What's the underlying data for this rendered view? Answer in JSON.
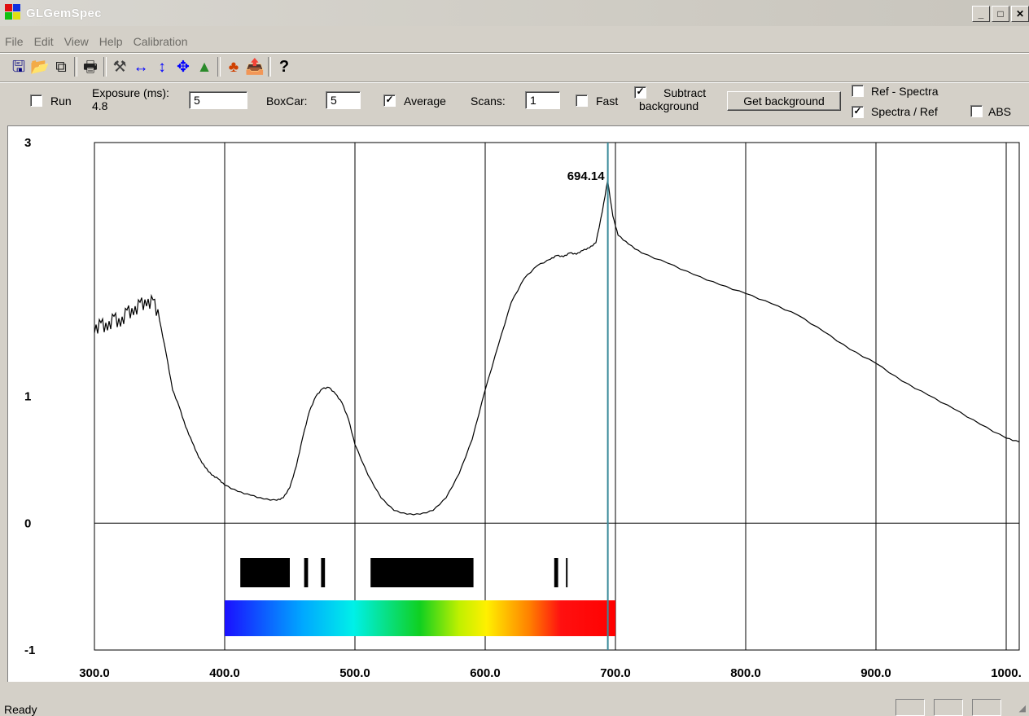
{
  "window": {
    "title": "GLGemSpec"
  },
  "menu": [
    "File",
    "Edit",
    "View",
    "Help",
    "Calibration"
  ],
  "toolbar": {
    "icons": [
      {
        "name": "save-icon",
        "glyph": "🖫",
        "color": "#000080"
      },
      {
        "name": "open-folder-icon",
        "glyph": "📂",
        "color": "#c8a000"
      },
      {
        "name": "copy-icon",
        "glyph": "⧉",
        "color": "#202020"
      },
      {
        "name": "print-icon",
        "glyph": "🖶",
        "color": "#202020"
      },
      {
        "name": "calibrate-tool-icon",
        "glyph": "⚒",
        "color": "#404040"
      },
      {
        "name": "horizontal-zoom-icon",
        "glyph": "↔",
        "color": "#0000ff"
      },
      {
        "name": "vertical-zoom-icon",
        "glyph": "↕",
        "color": "#0000ff"
      },
      {
        "name": "move-icon",
        "glyph": "✥",
        "color": "#0000ff"
      },
      {
        "name": "spectrum-peaks-icon",
        "glyph": "▲",
        "color": "#2a8a2a"
      },
      {
        "name": "color-wheel-icon",
        "glyph": "♣",
        "color": "#d04000"
      },
      {
        "name": "export-folder-icon",
        "glyph": "📤",
        "color": "#c8a000"
      },
      {
        "name": "help-icon",
        "glyph": "?",
        "color": "#000000"
      }
    ]
  },
  "controls": {
    "run_label": "Run",
    "exposure_label": "Exposure (ms):",
    "exposure_actual": "4.8",
    "exposure_value": "5",
    "boxcar_label": "BoxCar:",
    "boxcar_value": "5",
    "average_label": "Average",
    "average_checked": true,
    "scans_label": "Scans:",
    "scans_value": "1",
    "fast_label": "Fast",
    "subtract_label_1": "Subtract",
    "subtract_label_2": "background",
    "subtract_checked": true,
    "get_background_label": "Get background",
    "ref_spectra_label": "Ref - Spectra",
    "spectra_ref_label": "Spectra / Ref",
    "spectra_ref_checked": true,
    "abs_label": "ABS"
  },
  "status": {
    "text": "Ready"
  },
  "chart_data": {
    "type": "line",
    "xlim": [
      300,
      1010
    ],
    "ylim": [
      -1,
      3
    ],
    "x_ticks": [
      300,
      400,
      500,
      600,
      700,
      800,
      900,
      1000
    ],
    "x_tick_labels": [
      "300.0",
      "400.0",
      "500.0",
      "600.0",
      "700.0",
      "800.0",
      "900.0",
      "1000."
    ],
    "y_tick_labels": [
      {
        "value": 3,
        "label": "3"
      },
      {
        "value": 1,
        "label": "1"
      },
      {
        "value": 0,
        "label": "0"
      },
      {
        "value": -1,
        "label": "-1"
      }
    ],
    "marker": {
      "x": 694.14,
      "label": "694.14"
    },
    "series": [
      {
        "points": [
          [
            300,
            1.5
          ],
          [
            305,
            1.58
          ],
          [
            310,
            1.52
          ],
          [
            315,
            1.63
          ],
          [
            320,
            1.55
          ],
          [
            325,
            1.68
          ],
          [
            330,
            1.64
          ],
          [
            335,
            1.74
          ],
          [
            340,
            1.71
          ],
          [
            345,
            1.76
          ],
          [
            350,
            1.6
          ],
          [
            355,
            1.34
          ],
          [
            360,
            1.05
          ],
          [
            365,
            0.92
          ],
          [
            370,
            0.76
          ],
          [
            375,
            0.64
          ],
          [
            380,
            0.52
          ],
          [
            385,
            0.44
          ],
          [
            390,
            0.38
          ],
          [
            395,
            0.35
          ],
          [
            400,
            0.3
          ],
          [
            410,
            0.25
          ],
          [
            420,
            0.22
          ],
          [
            430,
            0.19
          ],
          [
            440,
            0.18
          ],
          [
            445,
            0.2
          ],
          [
            450,
            0.28
          ],
          [
            455,
            0.45
          ],
          [
            460,
            0.68
          ],
          [
            465,
            0.88
          ],
          [
            470,
            1.0
          ],
          [
            475,
            1.06
          ],
          [
            480,
            1.07
          ],
          [
            485,
            1.02
          ],
          [
            490,
            0.95
          ],
          [
            495,
            0.82
          ],
          [
            500,
            0.62
          ],
          [
            510,
            0.38
          ],
          [
            520,
            0.2
          ],
          [
            530,
            0.1
          ],
          [
            540,
            0.07
          ],
          [
            550,
            0.07
          ],
          [
            560,
            0.1
          ],
          [
            570,
            0.2
          ],
          [
            580,
            0.39
          ],
          [
            590,
            0.66
          ],
          [
            600,
            1.05
          ],
          [
            610,
            1.4
          ],
          [
            620,
            1.74
          ],
          [
            630,
            1.93
          ],
          [
            640,
            2.03
          ],
          [
            650,
            2.08
          ],
          [
            655,
            2.11
          ],
          [
            660,
            2.1
          ],
          [
            665,
            2.13
          ],
          [
            670,
            2.12
          ],
          [
            675,
            2.15
          ],
          [
            680,
            2.17
          ],
          [
            685,
            2.21
          ],
          [
            690,
            2.46
          ],
          [
            694,
            2.7
          ],
          [
            698,
            2.42
          ],
          [
            702,
            2.27
          ],
          [
            710,
            2.2
          ],
          [
            720,
            2.13
          ],
          [
            740,
            2.05
          ],
          [
            760,
            1.96
          ],
          [
            780,
            1.88
          ],
          [
            800,
            1.81
          ],
          [
            820,
            1.73
          ],
          [
            840,
            1.64
          ],
          [
            860,
            1.51
          ],
          [
            880,
            1.37
          ],
          [
            900,
            1.26
          ],
          [
            920,
            1.12
          ],
          [
            940,
            1.01
          ],
          [
            960,
            0.9
          ],
          [
            980,
            0.78
          ],
          [
            1000,
            0.67
          ],
          [
            1010,
            0.64
          ]
        ]
      }
    ],
    "absorption_bands": [
      {
        "from": 412,
        "to": 450
      },
      {
        "from": 461,
        "to": 464
      },
      {
        "from": 474,
        "to": 477
      },
      {
        "from": 512,
        "to": 591
      },
      {
        "from": 653,
        "to": 656
      },
      {
        "from": 662,
        "to": 663
      }
    ],
    "spectrum_bar": {
      "from": 400,
      "to": 700
    }
  }
}
